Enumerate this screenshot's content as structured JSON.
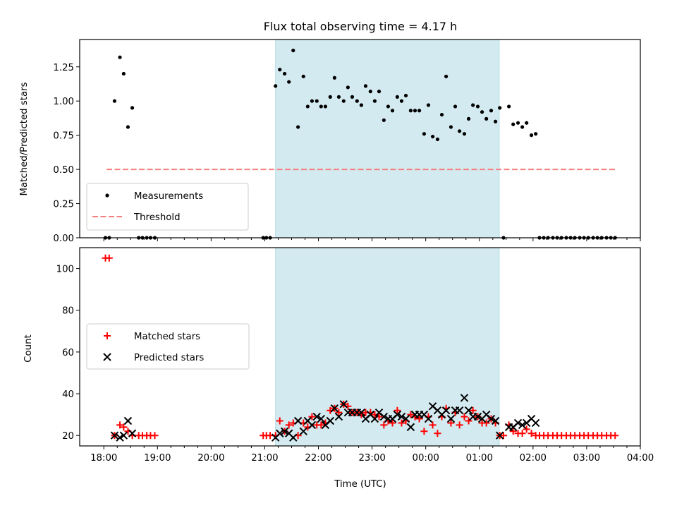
{
  "chart_data": {
    "title": "Flux total observing time = 4.17 h",
    "xlabel": "Time (UTC)",
    "xticks": [
      "18:00",
      "19:00",
      "20:00",
      "21:00",
      "22:00",
      "23:00",
      "00:00",
      "01:00",
      "02:00",
      "03:00",
      "04:00"
    ],
    "xlim_hours": [
      17.55,
      28.0
    ],
    "observing_window_hours": [
      21.2,
      25.37
    ],
    "observing_window_color": "#d4eaf1",
    "panels": [
      {
        "type": "scatter",
        "ylabel": "Matched/Predicted stars",
        "ylim": [
          0,
          1.45
        ],
        "yticks": [
          "0.00",
          "0.25",
          "0.50",
          "0.75",
          "1.00",
          "1.25"
        ],
        "threshold": 0.5,
        "threshold_x_hours": [
          18.05,
          27.55
        ],
        "threshold_color": "#f57f7f",
        "legend": [
          "Measurements",
          "Threshold"
        ],
        "legend_position": "lower-left",
        "series": [
          {
            "name": "Measurements",
            "marker": "dot",
            "color": "#000000",
            "x": [
              18.03,
              18.1,
              18.2,
              18.3,
              18.37,
              18.45,
              18.53,
              18.65,
              18.72,
              18.8,
              18.87,
              18.95,
              20.97,
              21.03,
              21.1,
              21.2,
              21.28,
              21.37,
              21.45,
              21.53,
              21.62,
              21.72,
              21.8,
              21.88,
              21.97,
              22.05,
              22.13,
              22.22,
              22.3,
              22.38,
              22.47,
              22.55,
              22.63,
              22.72,
              22.8,
              22.88,
              22.97,
              23.05,
              23.13,
              23.22,
              23.3,
              23.38,
              23.47,
              23.55,
              23.63,
              23.72,
              23.8,
              23.88,
              23.97,
              24.05,
              24.13,
              24.22,
              24.3,
              24.38,
              24.47,
              24.55,
              24.63,
              24.72,
              24.8,
              24.88,
              24.97,
              25.05,
              25.13,
              25.22,
              25.3,
              25.38,
              25.45,
              25.55,
              25.63,
              25.72,
              25.8,
              25.88,
              25.97,
              26.05,
              26.12,
              26.2,
              26.28,
              26.37,
              26.45,
              26.53,
              26.62,
              26.7,
              26.78,
              26.87,
              26.95,
              27.03,
              27.12,
              27.2,
              27.28,
              27.37,
              27.45,
              27.53
            ],
            "y": [
              0.0,
              0.0,
              1.0,
              1.32,
              1.2,
              0.81,
              0.95,
              0.0,
              0.0,
              0.0,
              0.0,
              0.0,
              0.0,
              0.0,
              0.0,
              1.11,
              1.23,
              1.2,
              1.14,
              1.37,
              0.81,
              1.18,
              0.96,
              1.0,
              1.0,
              0.96,
              0.96,
              1.03,
              1.17,
              1.03,
              1.0,
              1.1,
              1.03,
              1.0,
              0.97,
              1.11,
              1.07,
              1.0,
              1.07,
              0.86,
              0.96,
              0.93,
              1.03,
              1.0,
              1.04,
              0.93,
              0.93,
              0.93,
              0.76,
              0.97,
              0.74,
              0.72,
              0.9,
              1.18,
              0.81,
              0.96,
              0.78,
              0.76,
              0.87,
              0.97,
              0.96,
              0.92,
              0.87,
              0.93,
              0.85,
              0.95,
              0.0,
              0.96,
              0.83,
              0.84,
              0.81,
              0.84,
              0.75,
              0.76,
              0.0,
              0.0,
              0.0,
              0.0,
              0.0,
              0.0,
              0.0,
              0.0,
              0.0,
              0.0,
              0.0,
              0.0,
              0.0,
              0.0,
              0.0,
              0.0,
              0.0,
              0.0
            ]
          }
        ]
      },
      {
        "type": "scatter",
        "ylabel": "Count",
        "ylim": [
          15,
          110
        ],
        "yticks": [
          "20",
          "40",
          "60",
          "80",
          "100"
        ],
        "legend": [
          "Matched stars",
          "Predicted stars"
        ],
        "legend_position": "center-left",
        "series": [
          {
            "name": "Matched stars",
            "marker": "plus",
            "color": "#ff0000",
            "x": [
              18.03,
              18.1,
              18.2,
              18.3,
              18.37,
              18.45,
              18.53,
              18.65,
              18.72,
              18.8,
              18.87,
              18.95,
              20.97,
              21.03,
              21.1,
              21.2,
              21.28,
              21.37,
              21.45,
              21.53,
              21.62,
              21.72,
              21.8,
              21.88,
              21.97,
              22.05,
              22.13,
              22.22,
              22.3,
              22.38,
              22.47,
              22.55,
              22.63,
              22.72,
              22.8,
              22.88,
              22.97,
              23.05,
              23.13,
              23.22,
              23.3,
              23.38,
              23.47,
              23.55,
              23.63,
              23.72,
              23.8,
              23.88,
              23.97,
              24.05,
              24.13,
              24.22,
              24.3,
              24.38,
              24.47,
              24.55,
              24.63,
              24.72,
              24.8,
              24.88,
              24.97,
              25.05,
              25.13,
              25.22,
              25.3,
              25.38,
              25.45,
              25.55,
              25.63,
              25.72,
              25.8,
              25.88,
              25.97,
              26.05,
              26.12,
              26.2,
              26.28,
              26.37,
              26.45,
              26.53,
              26.62,
              26.7,
              26.78,
              26.87,
              26.95,
              27.03,
              27.12,
              27.2,
              27.28,
              27.37,
              27.45,
              27.53
            ],
            "y": [
              105,
              105,
              20,
              25,
              24,
              22,
              20,
              20,
              20,
              20,
              20,
              20,
              20,
              20,
              20,
              20,
              27,
              22,
              25,
              26,
              20,
              26,
              24,
              29,
              25,
              25,
              26,
              32,
              33,
              31,
              35,
              34,
              31,
              31,
              30,
              31,
              31,
              30,
              29,
              25,
              27,
              26,
              32,
              26,
              27,
              30,
              29,
              28,
              22,
              29,
              25,
              21,
              29,
              33,
              26,
              31,
              25,
              29,
              27,
              32,
              29,
              26,
              26,
              28,
              26,
              20,
              20,
              25,
              22,
              21,
              21,
              23,
              21,
              20,
              20,
              20,
              20,
              20,
              20,
              20,
              20,
              20,
              20,
              20,
              20,
              20,
              20,
              20,
              20,
              20,
              20,
              20
            ]
          },
          {
            "name": "Predicted stars",
            "marker": "x",
            "color": "#000000",
            "x": [
              18.2,
              18.3,
              18.37,
              18.45,
              18.53,
              21.2,
              21.28,
              21.37,
              21.45,
              21.53,
              21.62,
              21.72,
              21.8,
              21.88,
              21.97,
              22.05,
              22.13,
              22.22,
              22.3,
              22.38,
              22.47,
              22.55,
              22.63,
              22.72,
              22.8,
              22.88,
              22.97,
              23.05,
              23.13,
              23.22,
              23.3,
              23.38,
              23.47,
              23.55,
              23.63,
              23.72,
              23.8,
              23.88,
              23.97,
              24.05,
              24.13,
              24.22,
              24.3,
              24.38,
              24.47,
              24.55,
              24.63,
              24.72,
              24.8,
              24.88,
              24.97,
              25.05,
              25.13,
              25.22,
              25.3,
              25.38,
              25.55,
              25.63,
              25.72,
              25.8,
              25.88,
              25.97,
              26.05
            ],
            "y": [
              20,
              19,
              20,
              27,
              21,
              19,
              21,
              22,
              21,
              19,
              27,
              22,
              27,
              25,
              29,
              28,
              25,
              27,
              33,
              29,
              35,
              31,
              31,
              31,
              31,
              28,
              30,
              28,
              31,
              29,
              28,
              28,
              30,
              29,
              28,
              24,
              30,
              30,
              30,
              28,
              34,
              32,
              30,
              32,
              28,
              32,
              32,
              38,
              32,
              29,
              29,
              28,
              30,
              28,
              27,
              20,
              24,
              24,
              26,
              25,
              26,
              28,
              26
            ]
          }
        ]
      }
    ]
  }
}
